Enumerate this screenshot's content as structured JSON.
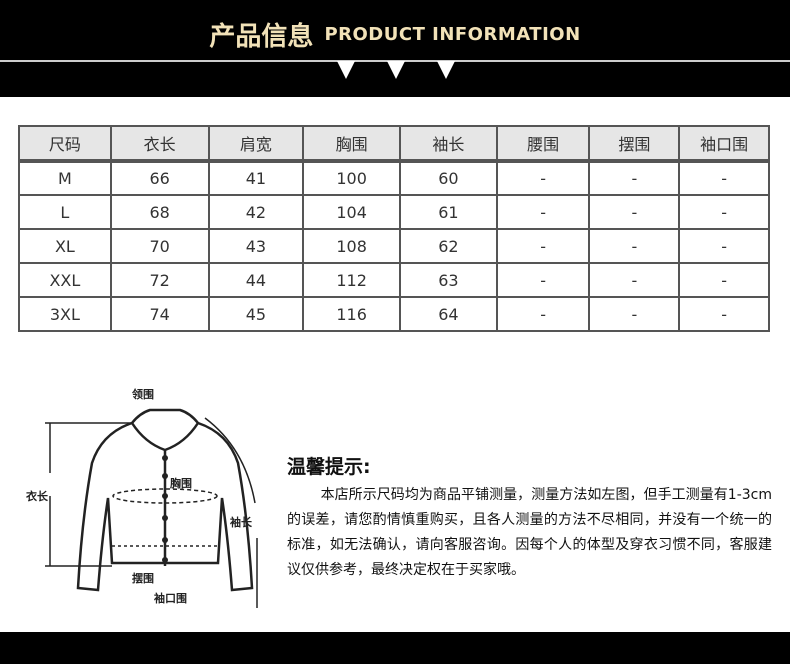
{
  "header": {
    "title_cn": "产品信息",
    "title_en": "PRODUCT INFORMATION",
    "colors": {
      "background": "#000000",
      "title": "#f2e2b8"
    }
  },
  "size_table": {
    "columns": [
      "尺码",
      "衣长",
      "肩宽",
      "胸围",
      "袖长",
      "腰围",
      "摆围",
      "袖口围"
    ],
    "rows": [
      [
        "M",
        "66",
        "41",
        "100",
        "60",
        "-",
        "-",
        "-"
      ],
      [
        "L",
        "68",
        "42",
        "104",
        "61",
        "-",
        "-",
        "-"
      ],
      [
        "XL",
        "70",
        "43",
        "108",
        "62",
        "-",
        "-",
        "-"
      ],
      [
        "XXL",
        "72",
        "44",
        "112",
        "63",
        "-",
        "-",
        "-"
      ],
      [
        "3XL",
        "74",
        "45",
        "116",
        "64",
        "-",
        "-",
        "-"
      ]
    ]
  },
  "diagram": {
    "labels": {
      "collar": "领围",
      "chest": "胸围",
      "length": "衣长",
      "sleeve": "袖长",
      "hem": "摆围",
      "cuff": "袖口围"
    }
  },
  "tips": {
    "heading": "温馨提示:",
    "body": "本店所示尺码均为商品平铺测量，测量方法如左图，但手工测量有1-3cm的误差，请您酌情慎重购买，且各人测量的方法不尽相同，并没有一个统一的标准，如无法确认，请向客服咨询。因每个人的体型及穿衣习惯不同，客服建议仅供参考，最终决定权在于买家哦。"
  }
}
